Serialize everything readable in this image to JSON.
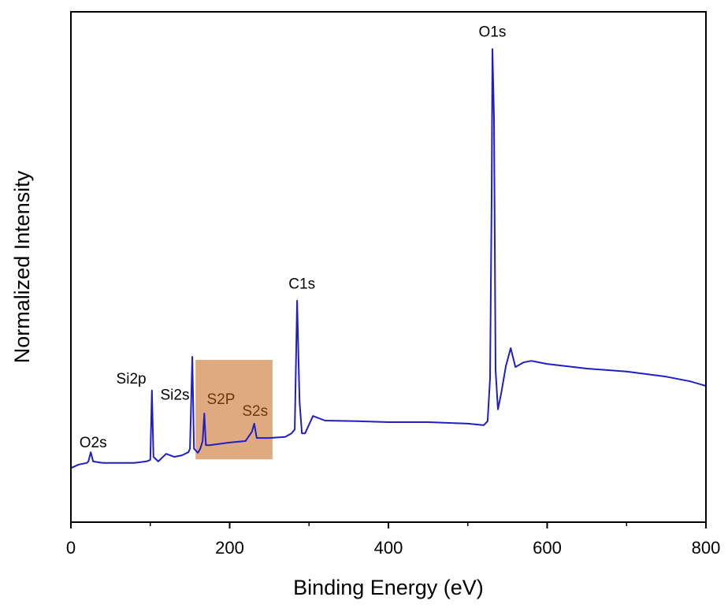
{
  "chart_data": {
    "type": "line",
    "xlabel": "Binding Energy (eV)",
    "ylabel": "Normalized Intensity",
    "x": [
      0,
      10,
      20,
      22,
      25,
      28,
      40,
      60,
      80,
      95,
      100,
      102,
      104,
      110,
      120,
      130,
      140,
      148,
      150,
      153,
      155,
      160,
      163,
      166,
      168,
      170,
      175,
      200,
      220,
      228,
      231,
      234,
      250,
      270,
      278,
      282,
      285,
      288,
      291,
      295,
      305,
      320,
      360,
      400,
      450,
      500,
      520,
      525,
      528,
      530,
      531,
      533,
      535,
      538,
      542,
      548,
      554,
      560,
      570,
      580,
      600,
      650,
      700,
      750,
      780,
      800
    ],
    "values": [
      0.106,
      0.113,
      0.116,
      0.119,
      0.137,
      0.119,
      0.116,
      0.116,
      0.116,
      0.119,
      0.122,
      0.258,
      0.128,
      0.119,
      0.134,
      0.128,
      0.131,
      0.137,
      0.144,
      0.324,
      0.144,
      0.136,
      0.144,
      0.159,
      0.213,
      0.151,
      0.151,
      0.156,
      0.159,
      0.177,
      0.193,
      0.165,
      0.165,
      0.167,
      0.174,
      0.182,
      0.434,
      0.236,
      0.174,
      0.174,
      0.208,
      0.199,
      0.198,
      0.196,
      0.196,
      0.193,
      0.19,
      0.198,
      0.282,
      0.637,
      0.927,
      0.792,
      0.298,
      0.221,
      0.252,
      0.306,
      0.341,
      0.304,
      0.313,
      0.316,
      0.31,
      0.301,
      0.295,
      0.285,
      0.276,
      0.267
    ],
    "color": "#1f1fc4",
    "xlim": [
      0,
      800
    ],
    "ylim": [
      0,
      1
    ],
    "xticks": [
      0,
      200,
      400,
      600,
      800
    ],
    "xminorticks": [
      100,
      300,
      500,
      700
    ],
    "highlight": {
      "xlim": [
        157,
        254
      ],
      "ylim": [
        0.123,
        0.318
      ],
      "color": "#e0aa80"
    },
    "annotations": [
      {
        "text": "O1s",
        "x": 531,
        "y": 0.959,
        "color": "#000000"
      },
      {
        "text": "C1s",
        "x": 291,
        "y": 0.465,
        "color": "#000000"
      },
      {
        "text": "Si2p",
        "x": 76,
        "y": 0.279,
        "color": "#000000"
      },
      {
        "text": "Si2s",
        "x": 131,
        "y": 0.248,
        "color": "#000000"
      },
      {
        "text": "S2P",
        "x": 189,
        "y": 0.239,
        "color": "#6b3510"
      },
      {
        "text": "S2s",
        "x": 232,
        "y": 0.216,
        "color": "#6b3510"
      },
      {
        "text": "O2s",
        "x": 28,
        "y": 0.154,
        "color": "#000000"
      }
    ]
  }
}
